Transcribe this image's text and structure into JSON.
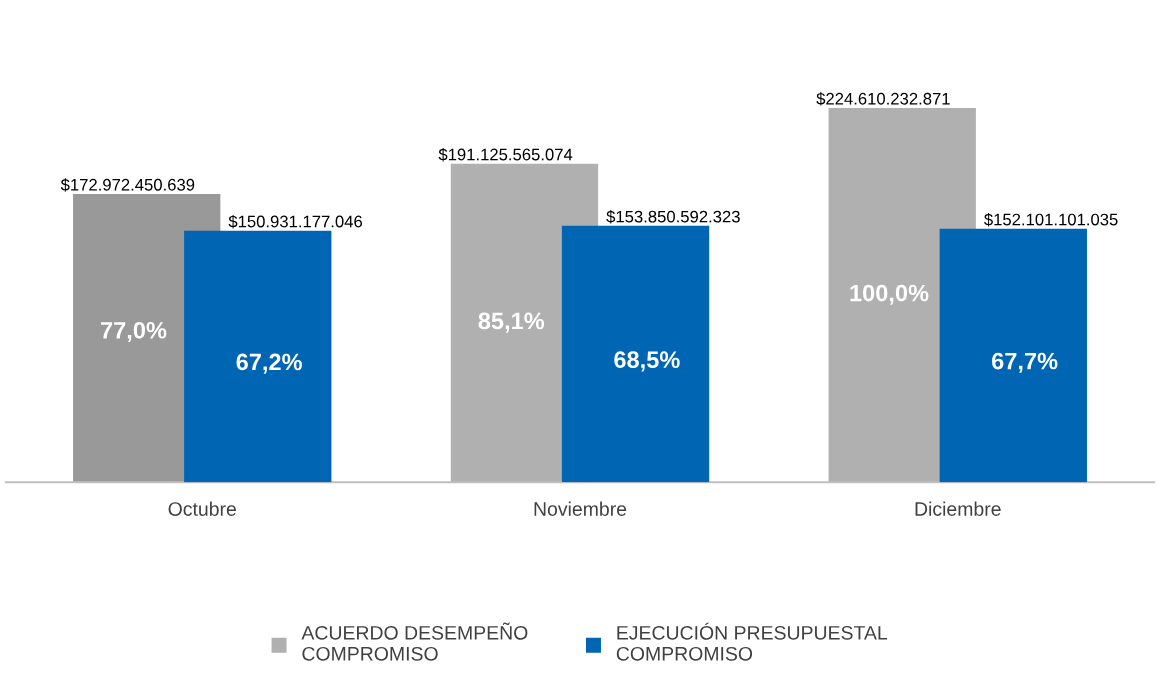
{
  "chart_data": {
    "type": "bar",
    "categories": [
      "Octubre",
      "Noviembre",
      "Diciembre"
    ],
    "series": [
      {
        "name": "ACUERDO DESEMPEÑO COMPROMISO",
        "color": "#b0b0b0",
        "colors": [
          "#999999",
          "#b0b0b0",
          "#b0b0b0"
        ],
        "values": [
          172972450639,
          191125565074,
          224610232871
        ],
        "value_labels": [
          "$172.972.450.639",
          "$191.125.565.074",
          "$224.610.232.871"
        ]
      },
      {
        "name": "EJECUCIÓN PRESUPUESTAL COMPROMISO",
        "color": "#0066b3",
        "values": [
          150931177046,
          153850592323,
          152101101035
        ],
        "value_labels": [
          "$150.931.177.046",
          "$153.850.592.323",
          "$152.101.101.035"
        ]
      }
    ],
    "annotations": [
      "77,0%",
      "85,1%",
      "100,0%",
      "67,2%",
      "68,5%",
      "67,7%"
    ],
    "legend": "bottom",
    "grid": false
  }
}
